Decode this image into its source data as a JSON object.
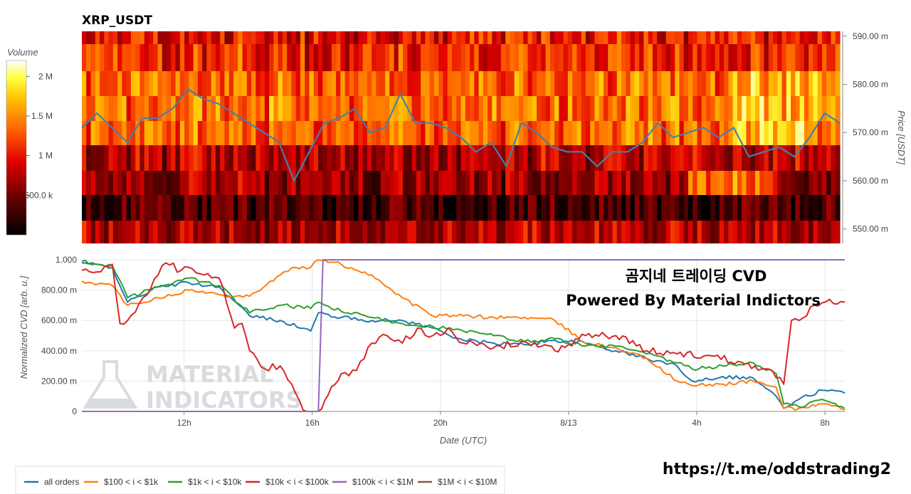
{
  "chart_data": [
    {
      "type": "heatmap",
      "title": "XRP_USDT",
      "ylabel": "Price [USDT]",
      "ylim": [
        547,
        591
      ],
      "yticks": [
        "590.00 m",
        "580.00 m",
        "570.00 m",
        "560.00 m",
        "550.00 m"
      ],
      "ytick_values": [
        590,
        580,
        570,
        560,
        550
      ],
      "colorbar": {
        "label": "Volume",
        "ticks": [
          "2 M",
          "1.5 M",
          "1 M",
          "500.0 k"
        ],
        "tick_values": [
          2000000,
          1500000,
          1000000,
          500000
        ],
        "range": [
          0,
          2200000
        ]
      },
      "price_line": {
        "color": "#4a7ea8",
        "x": [
          0,
          2,
          4,
          6,
          8,
          10,
          12,
          14,
          16,
          18,
          20,
          22,
          24,
          26,
          28,
          30,
          32,
          34,
          36,
          38,
          40,
          42,
          44,
          46,
          48,
          50,
          52,
          54,
          56,
          58,
          60,
          62,
          64,
          66,
          68,
          70,
          72,
          74,
          76,
          78,
          80,
          82,
          84,
          86,
          88,
          90,
          92,
          94,
          96,
          98,
          100
        ],
        "y": [
          571,
          574,
          571,
          568,
          573,
          573,
          575,
          579,
          577,
          576,
          574,
          572,
          570,
          568,
          560,
          566,
          572,
          573,
          575,
          570,
          571,
          578,
          572,
          572,
          571,
          569,
          566,
          568,
          563,
          572,
          570,
          567,
          566,
          566,
          563,
          566,
          566,
          568,
          572,
          569,
          570,
          571,
          569,
          571,
          565,
          566,
          567,
          565,
          569,
          574,
          572
        ]
      }
    },
    {
      "type": "line",
      "xlabel": "Date (UTC)",
      "ylabel": "Normalized CVD [arb. u.]",
      "ylim": [
        0,
        1
      ],
      "yticks": [
        "1.000",
        "800.00 m",
        "600.00 m",
        "400.00 m",
        "200.00 m",
        "0"
      ],
      "ytick_values": [
        1,
        0.8,
        0.6,
        0.4,
        0.2,
        0
      ],
      "xticks": [
        "12h",
        "16h",
        "20h",
        "8/13",
        "4h",
        "8h"
      ],
      "xtick_values": [
        13.4,
        30.2,
        47,
        63.8,
        80.6,
        97.4
      ],
      "series": [
        {
          "name": "all orders",
          "color": "#1f77b4",
          "x": [
            0,
            4,
            6,
            10,
            14,
            18,
            22,
            26,
            30,
            31,
            34,
            38,
            42,
            46,
            50,
            54,
            58,
            62,
            66,
            70,
            74,
            78,
            80,
            84,
            88,
            91,
            92,
            94,
            97,
            100
          ],
          "y": [
            0.98,
            0.95,
            0.72,
            0.82,
            0.85,
            0.82,
            0.63,
            0.6,
            0.53,
            0.65,
            0.62,
            0.6,
            0.6,
            0.55,
            0.47,
            0.45,
            0.44,
            0.47,
            0.45,
            0.4,
            0.35,
            0.3,
            0.2,
            0.23,
            0.22,
            0.1,
            0.02,
            0.08,
            0.14,
            0.12
          ]
        },
        {
          "name": "$100 < i < $1k",
          "color": "#ff7f0e",
          "x": [
            0,
            4,
            6,
            10,
            14,
            18,
            22,
            26,
            28,
            30,
            31,
            34,
            38,
            42,
            46,
            50,
            54,
            58,
            62,
            66,
            70,
            74,
            78,
            80,
            84,
            88,
            91,
            92,
            94,
            97,
            100
          ],
          "y": [
            0.86,
            0.83,
            0.7,
            0.75,
            0.8,
            0.77,
            0.76,
            0.9,
            0.95,
            0.95,
            1.0,
            0.97,
            0.9,
            0.75,
            0.63,
            0.63,
            0.62,
            0.62,
            0.6,
            0.45,
            0.42,
            0.35,
            0.2,
            0.17,
            0.18,
            0.2,
            0.16,
            0.02,
            0.02,
            0.05,
            0.01
          ]
        },
        {
          "name": "$1k < i < $10k",
          "color": "#2ca02c",
          "x": [
            0,
            4,
            6,
            10,
            14,
            18,
            22,
            26,
            30,
            31,
            34,
            38,
            42,
            46,
            50,
            54,
            58,
            62,
            66,
            70,
            74,
            78,
            80,
            84,
            88,
            91,
            92,
            94,
            97,
            100
          ],
          "y": [
            0.99,
            0.96,
            0.75,
            0.82,
            0.88,
            0.83,
            0.65,
            0.7,
            0.68,
            0.72,
            0.66,
            0.62,
            0.58,
            0.56,
            0.53,
            0.5,
            0.46,
            0.48,
            0.43,
            0.43,
            0.38,
            0.32,
            0.28,
            0.3,
            0.32,
            0.25,
            0.05,
            0.03,
            0.08,
            0.02
          ]
        },
        {
          "name": "$10k < i < $100k",
          "color": "#d62728",
          "x": [
            0,
            2,
            4,
            5,
            6,
            8,
            10,
            11,
            13,
            14,
            16,
            18,
            20,
            21,
            22,
            24,
            26,
            28,
            29,
            30,
            31,
            34,
            36,
            38,
            40,
            42,
            44,
            46,
            48,
            50,
            54,
            58,
            62,
            66,
            70,
            74,
            78,
            82,
            86,
            90,
            92,
            93,
            94,
            96,
            98,
            100
          ],
          "y": [
            0.93,
            0.92,
            0.97,
            0.58,
            0.6,
            0.75,
            0.9,
            0.98,
            0.93,
            0.95,
            0.9,
            0.88,
            0.55,
            0.58,
            0.4,
            0.28,
            0.3,
            0.12,
            0.01,
            0.0,
            0.0,
            0.25,
            0.27,
            0.45,
            0.5,
            0.45,
            0.55,
            0.5,
            0.55,
            0.45,
            0.42,
            0.46,
            0.4,
            0.5,
            0.5,
            0.4,
            0.38,
            0.37,
            0.33,
            0.28,
            0.18,
            0.6,
            0.6,
            0.7,
            0.74,
            0.72
          ]
        },
        {
          "name": "$100k < i < $1M",
          "color": "#9467bd",
          "x": [
            0,
            31,
            31.6,
            100
          ],
          "y": [
            0,
            0,
            1.0,
            1.0
          ]
        },
        {
          "name": "$1M < i < $10M",
          "color": "#8c564b",
          "x": [],
          "y": []
        }
      ]
    }
  ],
  "overlay": {
    "line1": "곰지네 트레이딩 CVD",
    "line2": "Powered By Material Indictors",
    "link": "https://t.me/oddstrading2",
    "watermark_line1": "MATERIAL",
    "watermark_line2": "INDICATORS"
  }
}
